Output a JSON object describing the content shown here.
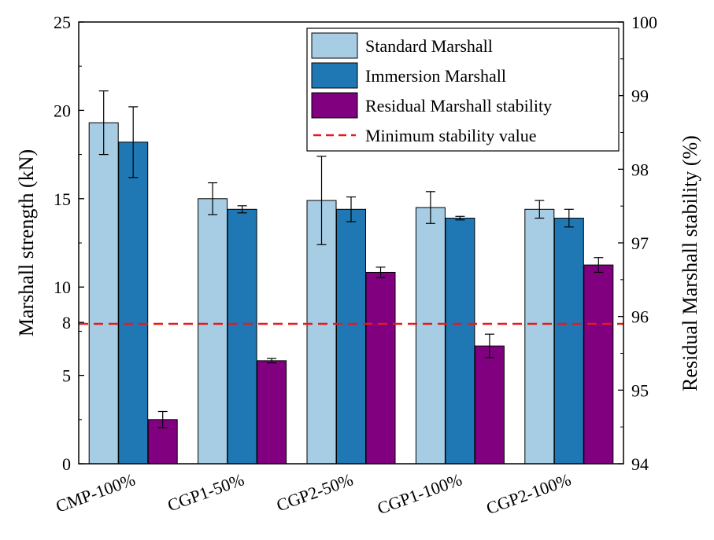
{
  "chart_data": {
    "type": "bar",
    "categories": [
      "CMP-100%",
      "CGP1-50%",
      "CGP2-50%",
      "CGP1-100%",
      "CGP2-100%"
    ],
    "series": [
      {
        "name": "Standard Marshall",
        "axis": "left",
        "color": "#a6cde4",
        "values": [
          19.3,
          15.0,
          14.9,
          14.5,
          14.4
        ],
        "errors": [
          1.8,
          0.9,
          2.5,
          0.9,
          0.5
        ]
      },
      {
        "name": "Immersion Marshall",
        "axis": "left",
        "color": "#1f77b4",
        "values": [
          18.2,
          14.4,
          14.4,
          13.9,
          13.9
        ],
        "errors": [
          2.0,
          0.2,
          0.7,
          0.1,
          0.5
        ]
      },
      {
        "name": "Residual Marshall stability",
        "axis": "right",
        "color": "#800080",
        "values": [
          94.6,
          95.4,
          96.6,
          95.6,
          96.7
        ],
        "errors": [
          0.11,
          0.03,
          0.07,
          0.16,
          0.1
        ]
      }
    ],
    "reference_line": {
      "name": "Minimum stability value",
      "axis": "right",
      "value": 95.9,
      "color": "#e8191c"
    },
    "ylabel": "Marshall strength (kN)",
    "y2label": "Residual Marshall stability (%)",
    "ylim": [
      0,
      25
    ],
    "y2lim": [
      94,
      100
    ],
    "yticks": [
      "0",
      "5",
      "8",
      "10",
      "15",
      "20",
      "25"
    ],
    "ytick_values": [
      0,
      5,
      8,
      10,
      15,
      20,
      25
    ],
    "y2ticks": [
      "94",
      "95",
      "96",
      "97",
      "98",
      "99",
      "100"
    ],
    "y2tick_values": [
      94,
      95,
      96,
      97,
      98,
      99,
      100
    ],
    "legend_position": "top-right",
    "grid": false
  }
}
